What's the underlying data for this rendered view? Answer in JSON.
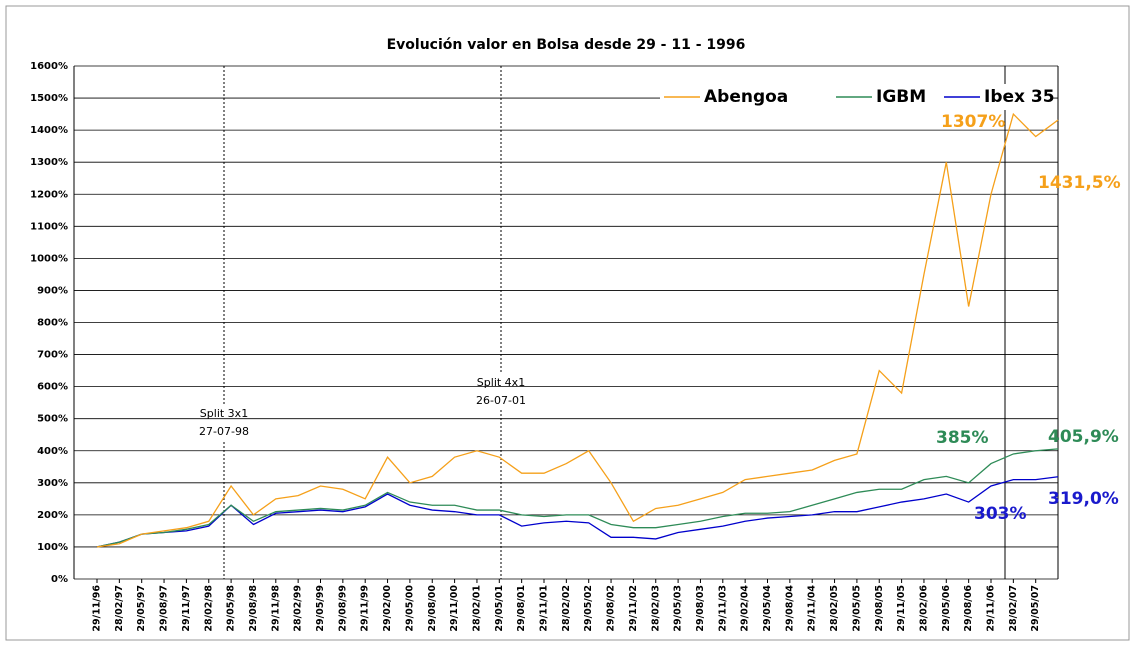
{
  "chart_data": {
    "type": "line",
    "title": "Evolución valor en Bolsa desde 29 - 11 - 1996",
    "categories": [
      "29/11/96",
      "28/02/97",
      "29/05/97",
      "29/08/97",
      "29/11/97",
      "28/02/98",
      "29/05/98",
      "29/08/98",
      "29/11/98",
      "28/02/99",
      "29/05/99",
      "29/08/99",
      "29/11/99",
      "29/02/00",
      "29/05/00",
      "29/08/00",
      "29/11/00",
      "28/02/01",
      "29/05/01",
      "29/08/01",
      "29/11/01",
      "28/02/02",
      "29/05/02",
      "29/08/02",
      "29/11/02",
      "28/02/03",
      "29/05/03",
      "29/08/03",
      "29/11/03",
      "29/02/04",
      "29/05/04",
      "29/08/04",
      "29/11/04",
      "28/02/05",
      "29/05/05",
      "29/08/05",
      "29/11/05",
      "28/02/06",
      "29/05/06",
      "29/08/06",
      "29/11/06",
      "28/02/07",
      "29/05/07",
      null
    ],
    "series": [
      {
        "name": "Abengoa",
        "color": "#f5a01a",
        "values": [
          100,
          110,
          140,
          150,
          160,
          180,
          290,
          200,
          250,
          260,
          290,
          280,
          250,
          380,
          300,
          320,
          380,
          400,
          380,
          330,
          330,
          360,
          400,
          300,
          180,
          220,
          230,
          250,
          270,
          310,
          320,
          330,
          340,
          370,
          390,
          650,
          580,
          950,
          1300,
          850,
          1200,
          1450,
          1380,
          1431.5
        ]
      },
      {
        "name": "IGBM",
        "color": "#2e8b57",
        "values": [
          100,
          115,
          140,
          145,
          155,
          170,
          230,
          180,
          210,
          215,
          220,
          215,
          230,
          270,
          240,
          230,
          230,
          215,
          215,
          200,
          195,
          200,
          200,
          170,
          160,
          160,
          170,
          180,
          195,
          205,
          205,
          210,
          230,
          250,
          270,
          280,
          280,
          310,
          320,
          300,
          360,
          390,
          400,
          405.9
        ]
      },
      {
        "name": "Ibex 35",
        "color": "#0000cc",
        "values": [
          100,
          115,
          140,
          145,
          150,
          165,
          230,
          170,
          205,
          210,
          215,
          210,
          225,
          265,
          230,
          215,
          210,
          200,
          200,
          165,
          175,
          180,
          175,
          130,
          130,
          125,
          145,
          155,
          165,
          180,
          190,
          195,
          200,
          210,
          210,
          225,
          240,
          250,
          265,
          240,
          290,
          310,
          310,
          319.0
        ]
      }
    ],
    "ylim": [
      0,
      1600
    ],
    "yticks": [
      {
        "value": 0,
        "label": "0%"
      },
      {
        "value": 100,
        "label": "100%"
      },
      {
        "value": 200,
        "label": "200%"
      },
      {
        "value": 300,
        "label": "300%"
      },
      {
        "value": 400,
        "label": "400%"
      },
      {
        "value": 500,
        "label": "500%"
      },
      {
        "value": 600,
        "label": "600%"
      },
      {
        "value": 700,
        "label": "700%"
      },
      {
        "value": 800,
        "label": "800%"
      },
      {
        "value": 900,
        "label": "900%"
      },
      {
        "value": 1000,
        "label": "1000%"
      },
      {
        "value": 1100,
        "label": "1100%"
      },
      {
        "value": 1200,
        "label": "1200%"
      },
      {
        "value": 1300,
        "label": "1300%"
      },
      {
        "value": 1400,
        "label": "1400%"
      },
      {
        "value": 1500,
        "label": "1500%"
      },
      {
        "value": 1600,
        "label": "1600%"
      }
    ],
    "grid": true,
    "legend": "top-right",
    "annotations": [
      {
        "text": "1307%",
        "color": "#f5a01a"
      },
      {
        "text": "1431,5%",
        "color": "#f5a01a"
      },
      {
        "text": "385%",
        "color": "#2e8b57"
      },
      {
        "text": "405,9%",
        "color": "#2e8b57"
      },
      {
        "text": "303%",
        "color": "#1a1acc"
      },
      {
        "text": "319,0%",
        "color": "#1a1acc"
      }
    ],
    "splits": [
      {
        "title": "Split 3x1",
        "date": "27-07-98"
      },
      {
        "title": "Split 4x1",
        "date": "26-07-01"
      }
    ]
  }
}
